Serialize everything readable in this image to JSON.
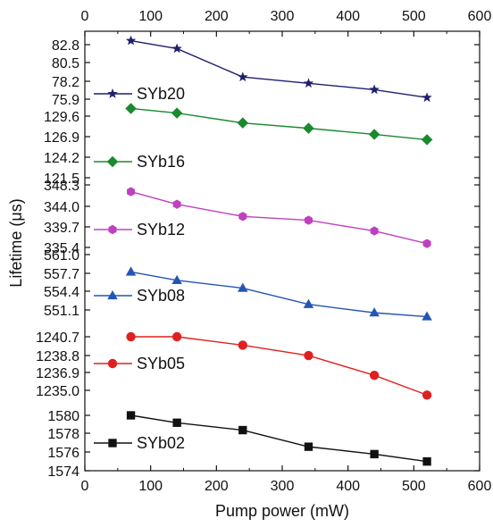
{
  "chart_data": {
    "type": "line",
    "xlabel": "Pump power (mW)",
    "ylabel": "Lifetime (μs)",
    "xlim": [
      0,
      600
    ],
    "x_ticks": [
      "0",
      "100",
      "200",
      "300",
      "400",
      "500",
      "600"
    ],
    "grid": false,
    "legend_placement": "left of each series, inline",
    "series": [
      {
        "name": "SYb20",
        "color": "#1f1f6e",
        "marker": "star",
        "ylim": [
          74.5,
          83.6
        ],
        "y_ticks": [
          "82.8",
          "80.5",
          "78.2",
          "75.9"
        ],
        "x": [
          70,
          140,
          240,
          340,
          440,
          520
        ],
        "y": [
          83.3,
          82.3,
          78.7,
          77.9,
          77.1,
          76.1
        ]
      },
      {
        "name": "SYb16",
        "color": "#1a8a2e",
        "marker": "diamond",
        "ylim": [
          121.2,
          131.5
        ],
        "y_ticks": [
          "129.6",
          "126.9",
          "124.2",
          "121.5"
        ],
        "x": [
          70,
          140,
          240,
          340,
          440,
          520
        ],
        "y": [
          130.6,
          130.0,
          128.7,
          128.0,
          127.2,
          126.5
        ]
      },
      {
        "name": "SYb12",
        "color": "#c040c0",
        "marker": "hexagon",
        "ylim": [
          333.2,
          351.3
        ],
        "y_ticks": [
          "348.3",
          "344.0",
          "339.7",
          "335.4"
        ],
        "x": [
          70,
          140,
          240,
          340,
          440,
          520
        ],
        "y": [
          346.9,
          344.3,
          341.8,
          341.0,
          338.8,
          336.2
        ]
      },
      {
        "name": "SYb08",
        "color": "#2356b4",
        "marker": "triangle",
        "ylim": [
          548.7,
          562.5
        ],
        "y_ticks": [
          "561.0",
          "557.7",
          "554.4",
          "551.1"
        ],
        "x": [
          70,
          140,
          240,
          340,
          440,
          520
        ],
        "y": [
          557.9,
          556.4,
          555.0,
          552.1,
          550.6,
          549.9
        ]
      },
      {
        "name": "SYb05",
        "color": "#e02020",
        "marker": "circle",
        "ylim": [
          1233.5,
          1242.3
        ],
        "y_ticks": [
          "1240.7",
          "1238.8",
          "1236.9",
          "1235.0"
        ],
        "x": [
          70,
          140,
          240,
          340,
          440,
          520
        ],
        "y": [
          1240.7,
          1240.7,
          1239.8,
          1238.7,
          1236.6,
          1234.5
        ]
      },
      {
        "name": "SYb02",
        "color": "#111111",
        "marker": "square",
        "ylim": [
          1574.0,
          1581.3
        ],
        "y_ticks": [
          "1580",
          "1578",
          "1576",
          "1574"
        ],
        "x": [
          70,
          140,
          240,
          340,
          440,
          520
        ],
        "y": [
          1580.0,
          1579.2,
          1578.4,
          1576.6,
          1575.8,
          1575.0
        ]
      }
    ]
  }
}
